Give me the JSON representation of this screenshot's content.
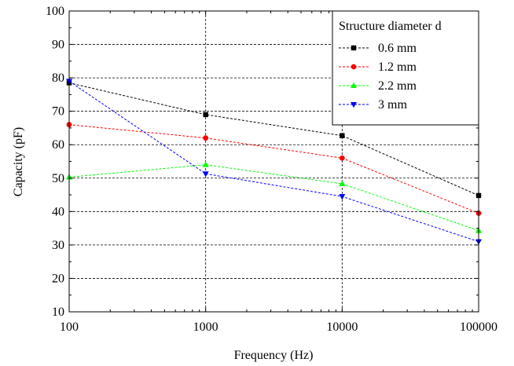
{
  "chart_data": {
    "type": "line",
    "title": "",
    "xlabel": "Frequency (Hz)",
    "ylabel": "Capacity (pF)",
    "x_scale": "log",
    "x": [
      100,
      1000,
      10000,
      100000
    ],
    "x_tick_labels": [
      "100",
      "1000",
      "10000",
      "100000"
    ],
    "ylim": [
      10,
      100
    ],
    "y_ticks": [
      10,
      20,
      30,
      40,
      50,
      60,
      70,
      80,
      90,
      100
    ],
    "y_tick_labels": [
      "10",
      "20",
      "30",
      "40",
      "50",
      "60",
      "70",
      "80",
      "90",
      "100"
    ],
    "grid": true,
    "legend": {
      "title": "Structure diameter d",
      "placement": "top-right"
    },
    "series": [
      {
        "name": "0.6 mm",
        "color": "#000000",
        "marker": "square",
        "values": [
          78.5,
          69,
          62.7,
          44.8
        ]
      },
      {
        "name": "1.2 mm",
        "color": "#ff0000",
        "marker": "circle",
        "values": [
          66,
          62,
          56,
          39.5
        ]
      },
      {
        "name": "2.2 mm",
        "color": "#00ff00",
        "marker": "triangle-up",
        "values": [
          50.3,
          54,
          48.3,
          34.3
        ]
      },
      {
        "name": "3 mm",
        "color": "#0000ff",
        "marker": "triangle-down",
        "values": [
          79,
          51.3,
          44.5,
          31
        ]
      }
    ]
  }
}
